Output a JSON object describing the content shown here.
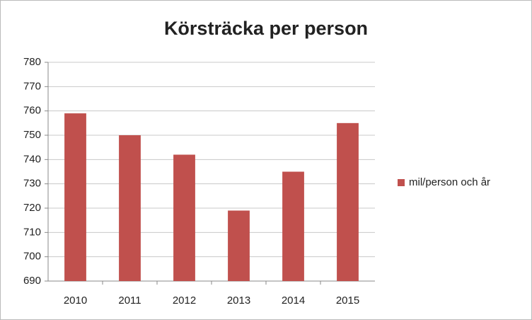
{
  "chart_data": {
    "type": "bar",
    "title": "Körsträcka per person",
    "categories": [
      "2010",
      "2011",
      "2012",
      "2013",
      "2014",
      "2015"
    ],
    "series": [
      {
        "name": "mil/person och år",
        "color": "#c0504d",
        "values": [
          759,
          750,
          742,
          719,
          735,
          755
        ]
      }
    ],
    "ylim": [
      690,
      780
    ],
    "yticks": [
      690,
      700,
      710,
      720,
      730,
      740,
      750,
      760,
      770,
      780
    ],
    "grid": true,
    "legend": "right"
  }
}
